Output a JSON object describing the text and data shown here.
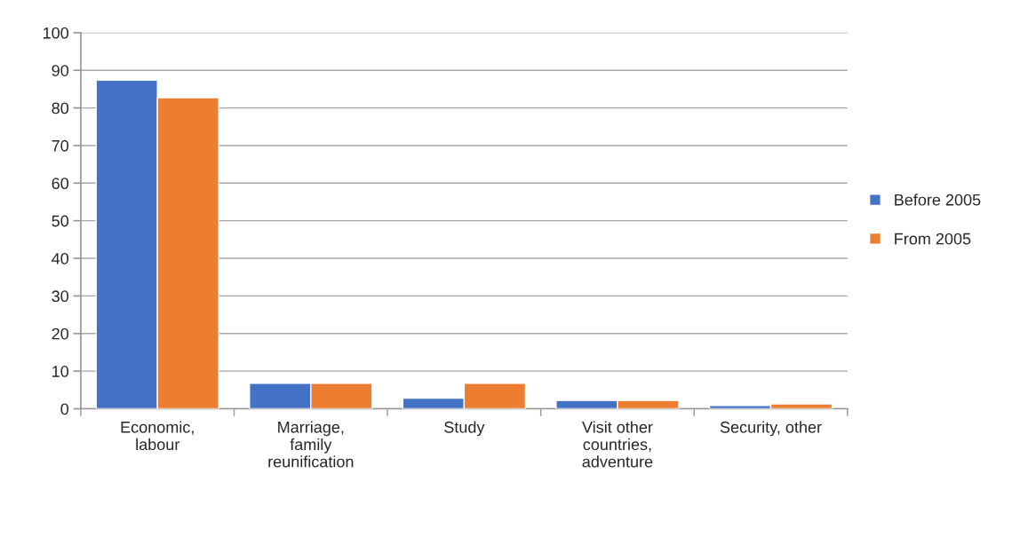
{
  "chart_data": {
    "type": "bar",
    "categories": [
      "Economic,\nlabour",
      "Marriage,\nfamily\nreunification",
      "Study",
      "Visit other\ncountries,\nadventure",
      "Security, other"
    ],
    "series": [
      {
        "name": "Before 2005",
        "color": "#4472c4",
        "values": [
          87.4,
          6.8,
          2.8,
          2.2,
          0.9
        ]
      },
      {
        "name": "From 2005",
        "color": "#ed7d31",
        "values": [
          82.7,
          6.8,
          6.8,
          2.2,
          1.3
        ]
      }
    ],
    "ylim": [
      0,
      100
    ],
    "yticks": [
      0,
      10,
      20,
      30,
      40,
      50,
      60,
      70,
      80,
      90,
      100
    ],
    "grid": "y",
    "legend": "right"
  }
}
